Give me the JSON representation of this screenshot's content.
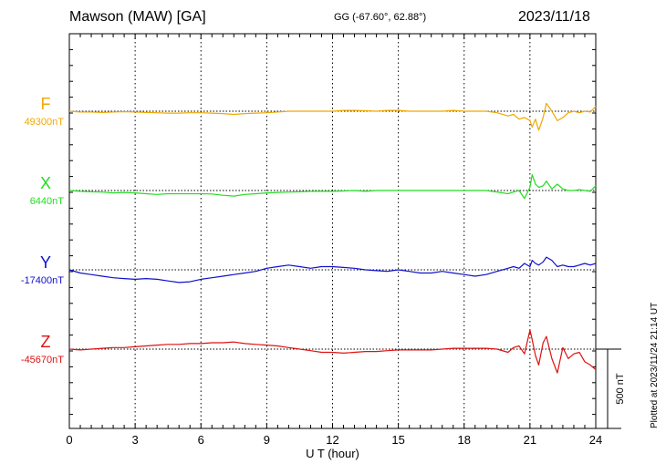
{
  "header": {
    "station": "Mawson (MAW)  [GA]",
    "coords": "GG (-67.60°,  62.88°)",
    "date": "2023/11/18"
  },
  "footer": {
    "plotted": "Plotted at 2023/11/24 21:14 UT"
  },
  "colors": {
    "F": "#f0a800",
    "X": "#22dd22",
    "Y": "#1010cc",
    "Z": "#dd1111"
  },
  "chart_data": {
    "type": "line",
    "xlabel": "U T (hour)",
    "xlim": [
      0,
      24
    ],
    "xticks": [
      "0",
      "3",
      "6",
      "9",
      "12",
      "15",
      "18",
      "21",
      "24"
    ],
    "scale_bar": {
      "label": "500 nT",
      "value_nT": 500
    },
    "x": [
      0,
      0.5,
      1,
      1.5,
      2,
      2.5,
      3,
      3.5,
      4,
      4.5,
      5,
      5.5,
      6,
      6.5,
      7,
      7.5,
      8,
      8.5,
      9,
      9.5,
      10,
      10.5,
      11,
      11.5,
      12,
      12.5,
      13,
      13.5,
      14,
      14.5,
      15,
      15.5,
      16,
      16.5,
      17,
      17.5,
      18,
      18.5,
      19,
      19.5,
      20,
      20.25,
      20.5,
      20.75,
      21,
      21.1,
      21.25,
      21.4,
      21.6,
      21.75,
      22,
      22.25,
      22.5,
      22.75,
      23,
      23.25,
      23.5,
      23.75,
      24
    ],
    "series": [
      {
        "name": "F",
        "baseline_label": "49300nT",
        "values": [
          0,
          -5,
          -5,
          -8,
          -5,
          -3,
          -5,
          -8,
          -10,
          -12,
          -12,
          -10,
          -10,
          -12,
          -15,
          -20,
          -15,
          -12,
          -10,
          -5,
          0,
          0,
          0,
          0,
          0,
          5,
          5,
          3,
          0,
          5,
          5,
          0,
          0,
          0,
          0,
          5,
          0,
          0,
          0,
          -10,
          -30,
          -20,
          -50,
          -40,
          -60,
          -100,
          -50,
          -120,
          -40,
          50,
          0,
          -60,
          -40,
          -10,
          0,
          -10,
          0,
          -5,
          30
        ]
      },
      {
        "name": "X",
        "baseline_label": "6440nT",
        "values": [
          0,
          -5,
          -8,
          -10,
          -15,
          -12,
          -15,
          -20,
          -25,
          -20,
          -20,
          -20,
          -20,
          -22,
          -30,
          -35,
          -25,
          -20,
          -15,
          -12,
          -10,
          -8,
          -5,
          -5,
          -5,
          -3,
          0,
          -5,
          0,
          0,
          0,
          0,
          0,
          0,
          0,
          0,
          0,
          0,
          0,
          -10,
          -20,
          -10,
          0,
          -50,
          20,
          100,
          40,
          20,
          30,
          60,
          10,
          40,
          10,
          0,
          0,
          5,
          0,
          -5,
          30
        ]
      },
      {
        "name": "Y",
        "baseline_label": "-17400nT",
        "values": [
          0,
          -20,
          -30,
          -40,
          -50,
          -55,
          -60,
          -55,
          -60,
          -70,
          -80,
          -75,
          -60,
          -50,
          -40,
          -30,
          -20,
          -10,
          10,
          20,
          30,
          20,
          10,
          20,
          20,
          15,
          10,
          0,
          -5,
          -10,
          0,
          -10,
          -20,
          -20,
          -10,
          -20,
          -30,
          -40,
          -30,
          -10,
          10,
          20,
          10,
          40,
          20,
          60,
          40,
          30,
          50,
          80,
          60,
          20,
          30,
          20,
          20,
          30,
          40,
          30,
          40
        ]
      },
      {
        "name": "Z",
        "baseline_label": "-45670nT",
        "values": [
          0,
          -5,
          0,
          5,
          10,
          10,
          15,
          20,
          25,
          30,
          30,
          35,
          35,
          40,
          40,
          45,
          35,
          30,
          25,
          20,
          10,
          0,
          -10,
          -20,
          -20,
          -25,
          -20,
          -15,
          -15,
          -10,
          -5,
          -5,
          -5,
          -5,
          0,
          5,
          5,
          5,
          5,
          0,
          -20,
          10,
          20,
          -30,
          120,
          60,
          -40,
          -100,
          40,
          80,
          -60,
          -150,
          10,
          -60,
          -30,
          -20,
          -80,
          -100,
          -130
        ]
      }
    ]
  }
}
